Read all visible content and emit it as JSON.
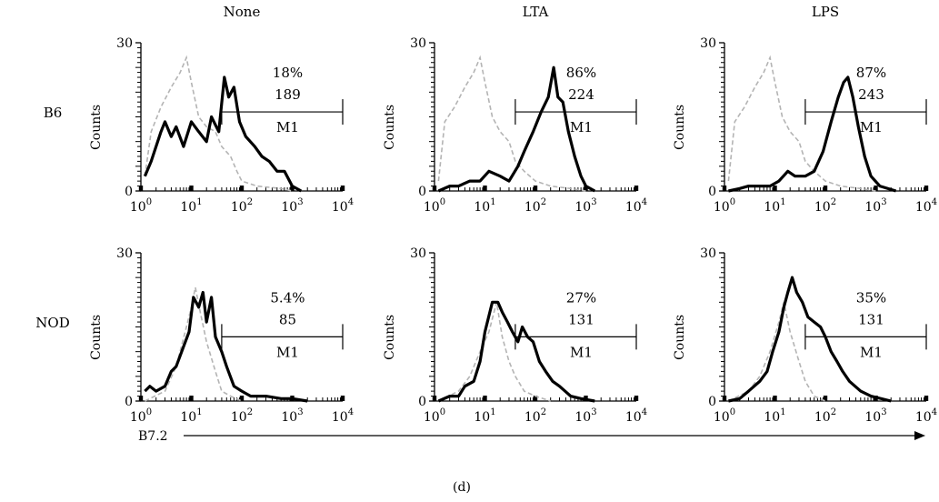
{
  "chart_data": {
    "type": "histogram-grid",
    "caption": "(d)",
    "xaxis_label": "B7.2",
    "column_titles": [
      "None",
      "LTA",
      "LPS"
    ],
    "row_labels": [
      "B6",
      "NOD"
    ],
    "ylabel": "Counts",
    "ylim": [
      0,
      30
    ],
    "yticks": [
      "0",
      "30"
    ],
    "xscale": "log",
    "xlim": [
      1,
      10000
    ],
    "xticks": [
      {
        "base": "10",
        "exp": "0"
      },
      {
        "base": "10",
        "exp": "1"
      },
      {
        "base": "10",
        "exp": "2"
      },
      {
        "base": "10",
        "exp": "3"
      },
      {
        "base": "10",
        "exp": "4"
      }
    ],
    "gate_label": "M1",
    "panels": [
      {
        "row": "B6",
        "column": "None",
        "percent": "18%",
        "mfi": "189",
        "gate": {
          "start": 40,
          "end": 10000,
          "level": 16
        },
        "control_series": [
          [
            1.2,
            3
          ],
          [
            1.6,
            12
          ],
          [
            2.5,
            17
          ],
          [
            4,
            21
          ],
          [
            6,
            24
          ],
          [
            8,
            27
          ],
          [
            10,
            22
          ],
          [
            14,
            15
          ],
          [
            20,
            13
          ],
          [
            30,
            12
          ],
          [
            40,
            9
          ],
          [
            60,
            7
          ],
          [
            80,
            4
          ],
          [
            100,
            2
          ],
          [
            200,
            1
          ],
          [
            600,
            0.5
          ],
          [
            1000,
            0
          ]
        ],
        "stimulated_series": [
          [
            1.2,
            3
          ],
          [
            1.6,
            6
          ],
          [
            2.5,
            12
          ],
          [
            3,
            14
          ],
          [
            4,
            11
          ],
          [
            5,
            13
          ],
          [
            7,
            9
          ],
          [
            10,
            14
          ],
          [
            14,
            12
          ],
          [
            20,
            10
          ],
          [
            25,
            15
          ],
          [
            35,
            12
          ],
          [
            45,
            23
          ],
          [
            55,
            19
          ],
          [
            70,
            21
          ],
          [
            90,
            14
          ],
          [
            120,
            11
          ],
          [
            180,
            9
          ],
          [
            250,
            7
          ],
          [
            350,
            6
          ],
          [
            500,
            4
          ],
          [
            700,
            4
          ],
          [
            1000,
            1
          ],
          [
            1500,
            0
          ]
        ]
      },
      {
        "row": "B6",
        "column": "LTA",
        "percent": "86%",
        "mfi": "224",
        "gate": {
          "start": 40,
          "end": 10000,
          "level": 16
        },
        "control_series": [
          [
            1.2,
            2
          ],
          [
            1.6,
            14
          ],
          [
            2.5,
            17
          ],
          [
            4,
            21
          ],
          [
            6,
            24
          ],
          [
            8,
            27
          ],
          [
            10,
            22
          ],
          [
            14,
            15
          ],
          [
            20,
            12
          ],
          [
            30,
            10
          ],
          [
            40,
            6
          ],
          [
            60,
            4
          ],
          [
            100,
            2
          ],
          [
            200,
            1
          ],
          [
            500,
            0.5
          ],
          [
            1000,
            0
          ]
        ],
        "stimulated_series": [
          [
            1.2,
            0
          ],
          [
            2,
            1
          ],
          [
            3,
            1
          ],
          [
            5,
            2
          ],
          [
            8,
            2
          ],
          [
            12,
            4
          ],
          [
            20,
            3
          ],
          [
            30,
            2
          ],
          [
            45,
            5
          ],
          [
            60,
            8
          ],
          [
            90,
            12
          ],
          [
            130,
            16
          ],
          [
            180,
            19
          ],
          [
            230,
            25
          ],
          [
            280,
            19
          ],
          [
            350,
            18
          ],
          [
            450,
            12
          ],
          [
            600,
            7
          ],
          [
            800,
            3
          ],
          [
            1000,
            1
          ],
          [
            1500,
            0
          ]
        ]
      },
      {
        "row": "B6",
        "column": "LPS",
        "percent": "87%",
        "mfi": "243",
        "gate": {
          "start": 40,
          "end": 10000,
          "level": 16
        },
        "control_series": [
          [
            1.2,
            2
          ],
          [
            1.6,
            14
          ],
          [
            2.5,
            17
          ],
          [
            4,
            21
          ],
          [
            6,
            24
          ],
          [
            8,
            27
          ],
          [
            10,
            22
          ],
          [
            14,
            15
          ],
          [
            20,
            12
          ],
          [
            30,
            10
          ],
          [
            40,
            6
          ],
          [
            60,
            4
          ],
          [
            100,
            2
          ],
          [
            200,
            1
          ],
          [
            500,
            0.5
          ],
          [
            1000,
            0
          ]
        ],
        "stimulated_series": [
          [
            1.2,
            0
          ],
          [
            2,
            0.5
          ],
          [
            3,
            1
          ],
          [
            5,
            1
          ],
          [
            8,
            1
          ],
          [
            12,
            2
          ],
          [
            18,
            4
          ],
          [
            25,
            3
          ],
          [
            40,
            3
          ],
          [
            60,
            4
          ],
          [
            90,
            8
          ],
          [
            130,
            14
          ],
          [
            180,
            19
          ],
          [
            230,
            22
          ],
          [
            280,
            23
          ],
          [
            350,
            19
          ],
          [
            450,
            13
          ],
          [
            600,
            7
          ],
          [
            800,
            3
          ],
          [
            1200,
            1
          ],
          [
            2500,
            0
          ]
        ]
      },
      {
        "row": "NOD",
        "column": "None",
        "percent": "5.4%",
        "mfi": "85",
        "gate": {
          "start": 40,
          "end": 10000,
          "level": 13
        },
        "control_series": [
          [
            1.2,
            0
          ],
          [
            3,
            2
          ],
          [
            5,
            7
          ],
          [
            8,
            15
          ],
          [
            10,
            19
          ],
          [
            12,
            23
          ],
          [
            15,
            18
          ],
          [
            20,
            12
          ],
          [
            30,
            6
          ],
          [
            40,
            2
          ],
          [
            60,
            1
          ],
          [
            100,
            0
          ]
        ],
        "stimulated_series": [
          [
            1.2,
            2
          ],
          [
            1.5,
            3
          ],
          [
            2,
            2
          ],
          [
            3,
            3
          ],
          [
            4,
            6
          ],
          [
            5,
            7
          ],
          [
            7,
            11
          ],
          [
            9,
            14
          ],
          [
            11,
            21
          ],
          [
            14,
            19
          ],
          [
            17,
            22
          ],
          [
            20,
            16
          ],
          [
            25,
            21
          ],
          [
            30,
            13
          ],
          [
            40,
            10
          ],
          [
            50,
            7
          ],
          [
            70,
            3
          ],
          [
            100,
            2
          ],
          [
            150,
            1
          ],
          [
            300,
            1
          ],
          [
            600,
            0.5
          ],
          [
            1000,
            0.5
          ],
          [
            2000,
            0
          ]
        ]
      },
      {
        "row": "NOD",
        "column": "LTA",
        "percent": "27%",
        "mfi": "131",
        "gate": {
          "start": 40,
          "end": 10000,
          "level": 13
        },
        "control_series": [
          [
            1.2,
            0
          ],
          [
            3,
            2
          ],
          [
            5,
            5
          ],
          [
            8,
            10
          ],
          [
            12,
            14
          ],
          [
            17,
            20
          ],
          [
            22,
            13
          ],
          [
            30,
            8
          ],
          [
            40,
            5
          ],
          [
            60,
            2
          ],
          [
            100,
            1
          ],
          [
            200,
            0
          ]
        ],
        "stimulated_series": [
          [
            1.2,
            0
          ],
          [
            2,
            1
          ],
          [
            3,
            1
          ],
          [
            4,
            3
          ],
          [
            6,
            4
          ],
          [
            8,
            8
          ],
          [
            10,
            14
          ],
          [
            14,
            20
          ],
          [
            18,
            20
          ],
          [
            22,
            18
          ],
          [
            28,
            16
          ],
          [
            35,
            14
          ],
          [
            45,
            12
          ],
          [
            55,
            15
          ],
          [
            70,
            13
          ],
          [
            90,
            12
          ],
          [
            120,
            8
          ],
          [
            160,
            6
          ],
          [
            220,
            4
          ],
          [
            300,
            3
          ],
          [
            500,
            1
          ],
          [
            800,
            0.5
          ],
          [
            1500,
            0
          ]
        ]
      },
      {
        "row": "NOD",
        "column": "LPS",
        "percent": "35%",
        "mfi": "131",
        "gate": {
          "start": 40,
          "end": 10000,
          "level": 13
        },
        "control_series": [
          [
            1.2,
            0
          ],
          [
            3,
            2
          ],
          [
            5,
            5
          ],
          [
            8,
            10
          ],
          [
            12,
            16
          ],
          [
            15,
            20
          ],
          [
            20,
            14
          ],
          [
            30,
            8
          ],
          [
            40,
            4
          ],
          [
            60,
            1
          ],
          [
            100,
            0
          ]
        ],
        "stimulated_series": [
          [
            1.2,
            0
          ],
          [
            2,
            0.5
          ],
          [
            3,
            2
          ],
          [
            5,
            4
          ],
          [
            7,
            6
          ],
          [
            9,
            10
          ],
          [
            12,
            14
          ],
          [
            15,
            19
          ],
          [
            18,
            22
          ],
          [
            22,
            25
          ],
          [
            27,
            22
          ],
          [
            35,
            20
          ],
          [
            45,
            17
          ],
          [
            60,
            16
          ],
          [
            80,
            15
          ],
          [
            100,
            13
          ],
          [
            130,
            10
          ],
          [
            170,
            8
          ],
          [
            220,
            6
          ],
          [
            300,
            4
          ],
          [
            500,
            2
          ],
          [
            800,
            1
          ],
          [
            2000,
            0
          ]
        ]
      }
    ]
  }
}
